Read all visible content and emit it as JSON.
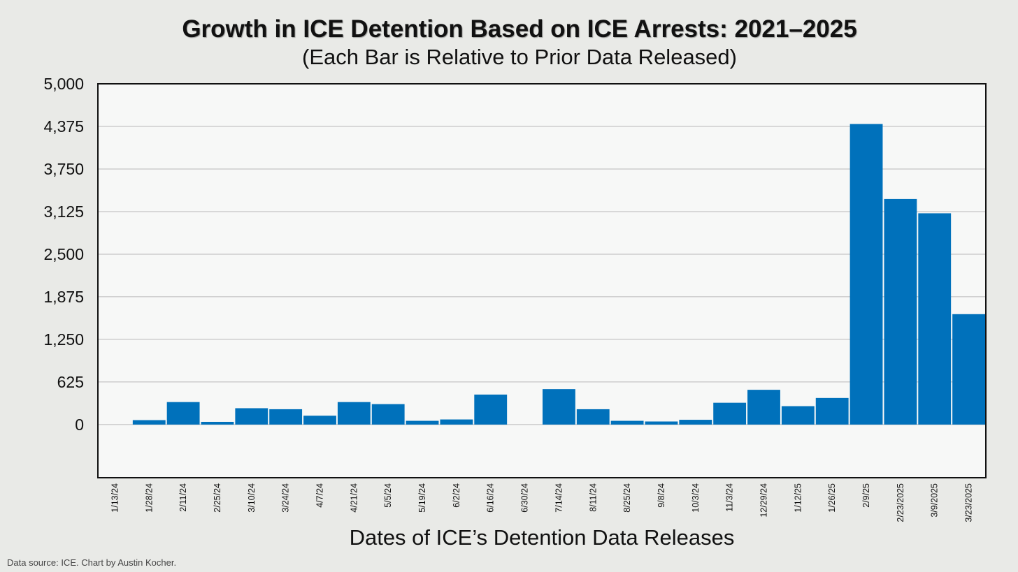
{
  "chart_data": {
    "type": "bar",
    "title": "Growth in ICE Detention Based on ICE Arrests: 2021–2025",
    "subtitle": "(Each Bar is Relative to Prior Data Released)",
    "xlabel": "Dates of ICE’s Detention Data Releases",
    "ylabel": "",
    "ylim": [
      -780,
      5000
    ],
    "yticks": [
      0,
      625,
      1250,
      1875,
      2500,
      3125,
      3750,
      4375,
      5000
    ],
    "ytick_labels": [
      "0",
      "625",
      "1,250",
      "1,875",
      "2,500",
      "3,125",
      "3,750",
      "4,375",
      "5,000"
    ],
    "categories": [
      "1/13/24",
      "1/28/24",
      "2/11/24",
      "2/25/24",
      "3/10/24",
      "3/24/24",
      "4/7/24",
      "4/21/24",
      "5/5/24",
      "5/19/24",
      "6/2/24",
      "6/16/24",
      "6/30/24",
      "7/14/24",
      "8/11/24",
      "8/25/24",
      "9/8/24",
      "10/3/24",
      "11/3/24",
      "12/29/24",
      "1/12/25",
      "1/26/25",
      "2/9/25",
      "2/23/2025",
      "3/9/2025",
      "3/23/2025"
    ],
    "values": [
      0,
      65,
      330,
      40,
      240,
      225,
      130,
      330,
      300,
      55,
      75,
      440,
      0,
      520,
      225,
      55,
      45,
      70,
      320,
      510,
      270,
      390,
      4410,
      3310,
      3100,
      1620
    ],
    "grid": true,
    "legend": "none",
    "bar_color": "#0071bb",
    "plot_background": "#f7f8f7"
  },
  "footer": {
    "source": "Data source: ICE. Chart by Austin Kocher."
  }
}
